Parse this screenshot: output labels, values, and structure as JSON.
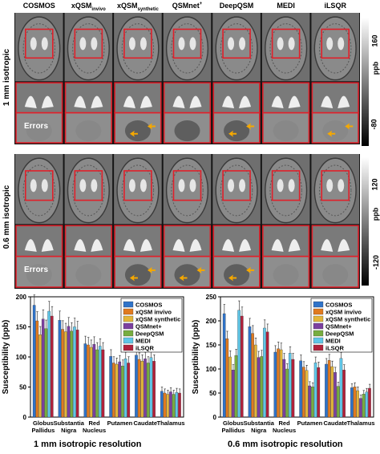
{
  "figure": {
    "methods": [
      {
        "name": "COSMOS",
        "sub": "",
        "sup": ""
      },
      {
        "name": "xQSM",
        "sub": "invivo",
        "sup": ""
      },
      {
        "name": "xQSM",
        "sub": "synthetic",
        "sup": ""
      },
      {
        "name": "QSMnet",
        "sub": "",
        "sup": "+"
      },
      {
        "name": "DeepQSM",
        "sub": "",
        "sup": ""
      },
      {
        "name": "MEDI",
        "sub": "",
        "sup": ""
      },
      {
        "name": "iLSQR",
        "sub": "",
        "sup": ""
      }
    ],
    "panel_top": {
      "label": "1 mm isotropic",
      "errors_label": "Errors",
      "colorbar_max": "160",
      "colorbar_min": "-80",
      "colorbar_unit": "ppb"
    },
    "panel_bottom": {
      "label": "0.6 mm isotropic",
      "errors_label": "Errors",
      "colorbar_max": "120",
      "colorbar_min": "-120",
      "colorbar_unit": "ppb"
    },
    "colors": {
      "roi_box": "#e0202a",
      "arrow": "#f5a800"
    }
  },
  "chart_data": [
    {
      "type": "bar",
      "title": "1 mm isotropic resolution",
      "ylabel": "Susceptibility (ppb)",
      "ylim": [
        0,
        200
      ],
      "yticks": [
        "0",
        "50",
        "100",
        "150",
        "200"
      ],
      "categories": [
        "Globus Pallidus",
        "Substantia Nigra",
        "Red Nucleus",
        "Putamen",
        "Caudate",
        "Thalamus"
      ],
      "series": [
        {
          "name": "COSMOS",
          "color": "#2f73c9",
          "values": [
            186,
            161,
            122,
            101,
            103,
            43
          ]
        },
        {
          "name": "xQSM invivo",
          "color": "#e07a1f",
          "values": [
            160,
            146,
            120,
            90,
            96,
            40
          ]
        },
        {
          "name": "xQSM synthetic",
          "color": "#e3b63a",
          "values": [
            137,
            142,
            116,
            88,
            93,
            38
          ]
        },
        {
          "name": "QSMnet+",
          "color": "#7b3fa0",
          "values": [
            163,
            151,
            121,
            92,
            97,
            42
          ]
        },
        {
          "name": "DeepQSM",
          "color": "#77ad3f",
          "values": [
            147,
            143,
            112,
            85,
            90,
            38
          ]
        },
        {
          "name": "MEDI",
          "color": "#5fc6e8",
          "values": [
            176,
            150,
            118,
            97,
            99,
            41
          ]
        },
        {
          "name": "iLSQR",
          "color": "#b0213b",
          "values": [
            168,
            145,
            112,
            90,
            93,
            40
          ]
        }
      ],
      "legend": "top-right"
    },
    {
      "type": "bar",
      "title": "0.6 mm isotropic resolution",
      "ylabel": "Susceptibility (ppb)",
      "ylim": [
        0,
        250
      ],
      "yticks": [
        "0",
        "50",
        "100",
        "150",
        "200",
        "250"
      ],
      "categories": [
        "Globus Pallidus",
        "Substantia Nigra",
        "Red Nucleus",
        "Putamen",
        "Caudate",
        "Thalamus"
      ],
      "series": [
        {
          "name": "COSMOS",
          "color": "#2f73c9",
          "values": [
            215,
            188,
            135,
            117,
            110,
            61
          ]
        },
        {
          "name": "xQSM invivo",
          "color": "#e07a1f",
          "values": [
            163,
            174,
            142,
            104,
            118,
            63
          ]
        },
        {
          "name": "xQSM synthetic",
          "color": "#e3b63a",
          "values": [
            125,
            150,
            140,
            97,
            105,
            55
          ]
        },
        {
          "name": "QSMnet+",
          "color": "#7b3fa0",
          "values": [
            98,
            124,
            120,
            65,
            93,
            39
          ]
        },
        {
          "name": "DeepQSM",
          "color": "#77ad3f",
          "values": [
            128,
            126,
            100,
            63,
            64,
            48
          ]
        },
        {
          "name": "MEDI",
          "color": "#5fc6e8",
          "values": [
            222,
            185,
            133,
            113,
            122,
            52
          ]
        },
        {
          "name": "iLSQR",
          "color": "#b0213b",
          "values": [
            210,
            177,
            120,
            103,
            98,
            60
          ]
        }
      ],
      "legend": "top-right"
    }
  ]
}
